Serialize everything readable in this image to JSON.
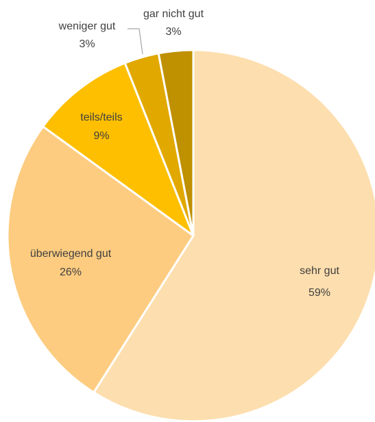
{
  "chart_data": {
    "type": "pie",
    "categories": [
      "sehr gut",
      "überwiegend gut",
      "teils/teils",
      "weniger gut",
      "gar nicht gut"
    ],
    "values": [
      59,
      26,
      9,
      3,
      3
    ],
    "value_labels": [
      "59%",
      "26%",
      "9%",
      "3%",
      "3%"
    ],
    "colors": [
      "#fddeae",
      "#fdcc80",
      "#fdbf00",
      "#e1a800",
      "#bf9000"
    ]
  }
}
